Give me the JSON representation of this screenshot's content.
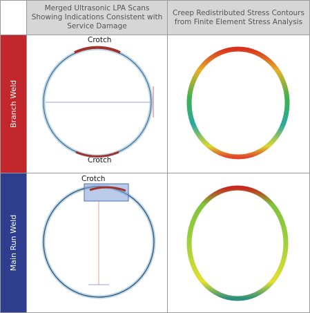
{
  "header": {
    "columns": [
      "Merged Ultrasonic LPA Scans Showing Indications Consistent with Service Damage",
      "Creep Redistributed Stress Contours from Finite Element Stress Analysis"
    ]
  },
  "rows": [
    {
      "label": "Branch Weld",
      "annotations": [
        "Crotch",
        "Crotch"
      ]
    },
    {
      "label": "Main Run Weld",
      "annotations": [
        "Crotch"
      ]
    }
  ]
}
